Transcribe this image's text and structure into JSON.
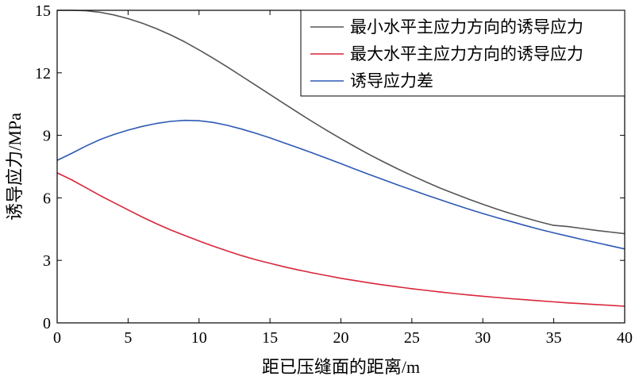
{
  "chart_data": {
    "type": "line",
    "xlabel": "距已压缝面的距离/m",
    "ylabel": "诱导应力/MPa",
    "xlim": [
      0,
      40
    ],
    "ylim": [
      0,
      15
    ],
    "xticks": [
      0,
      5,
      10,
      15,
      20,
      25,
      30,
      35,
      40
    ],
    "yticks": [
      3,
      6,
      9,
      12,
      15
    ],
    "grid": false,
    "legend": "top-right",
    "x": [
      0,
      1,
      2,
      3,
      4,
      5,
      6,
      7,
      8,
      9,
      10,
      11,
      12,
      13,
      14,
      15,
      16,
      17,
      18,
      19,
      20,
      21,
      22,
      23,
      24,
      25,
      26,
      27,
      28,
      29,
      30,
      31,
      32,
      33,
      34,
      35,
      36,
      37,
      38,
      39,
      40
    ],
    "series": [
      {
        "name": "最小水平主应力方向的诱导应力",
        "color": "#555555",
        "values": [
          15.0,
          15.0,
          14.98,
          14.91,
          14.78,
          14.6,
          14.38,
          14.12,
          13.82,
          13.48,
          13.1,
          12.7,
          12.28,
          11.84,
          11.4,
          10.96,
          10.52,
          10.08,
          9.65,
          9.24,
          8.84,
          8.45,
          8.08,
          7.73,
          7.39,
          7.07,
          6.76,
          6.47,
          6.2,
          5.94,
          5.69,
          5.46,
          5.24,
          5.04,
          4.85,
          4.68,
          4.62,
          4.53,
          4.44,
          4.36,
          4.28
        ]
      },
      {
        "name": "最大水平主应力方向的诱导应力",
        "color": "#d9263a",
        "values": [
          7.2,
          6.87,
          6.5,
          6.12,
          5.77,
          5.42,
          5.08,
          4.76,
          4.46,
          4.19,
          3.93,
          3.68,
          3.45,
          3.23,
          3.03,
          2.86,
          2.69,
          2.54,
          2.4,
          2.27,
          2.14,
          2.03,
          1.92,
          1.82,
          1.73,
          1.64,
          1.56,
          1.48,
          1.41,
          1.34,
          1.28,
          1.22,
          1.16,
          1.11,
          1.06,
          1.01,
          0.96,
          0.92,
          0.88,
          0.84,
          0.8
        ]
      },
      {
        "name": "诱导应力差",
        "color": "#2e58b5",
        "values": [
          7.8,
          8.13,
          8.48,
          8.79,
          9.04,
          9.25,
          9.43,
          9.57,
          9.67,
          9.72,
          9.7,
          9.62,
          9.48,
          9.3,
          9.1,
          8.88,
          8.64,
          8.4,
          8.15,
          7.9,
          7.64,
          7.38,
          7.12,
          6.87,
          6.62,
          6.38,
          6.14,
          5.91,
          5.68,
          5.46,
          5.25,
          5.05,
          4.86,
          4.67,
          4.49,
          4.32,
          4.16,
          4.0,
          3.85,
          3.7,
          3.55
        ]
      }
    ]
  }
}
